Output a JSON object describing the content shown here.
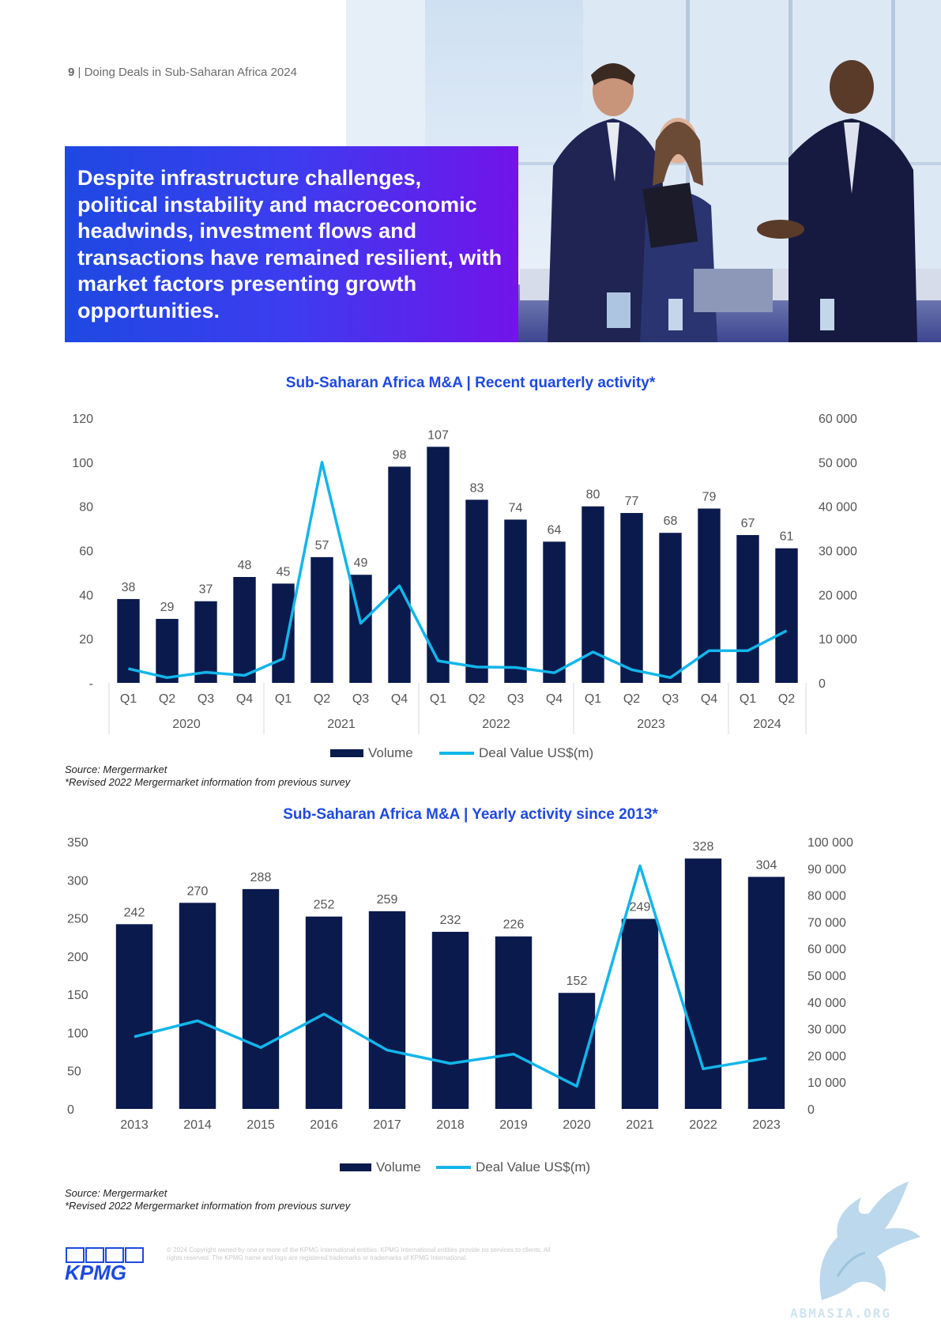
{
  "header": {
    "page_number": "9",
    "separator": "|",
    "title": "Doing Deals in Sub-Saharan Africa 2024"
  },
  "callout": {
    "text": "Despite infrastructure challenges, political instability and macroeconomic headwinds, investment flows and transactions have remained resilient, with market factors presenting growth opportunities."
  },
  "colors": {
    "bar": "#0b1a4d",
    "line": "#12b6ea",
    "title_blue": "#1e49e2",
    "gradient_start": "#1e49e2",
    "gradient_end": "#7213ea"
  },
  "chart_data": [
    {
      "type": "bar",
      "title": "Sub-Saharan Africa M&A | Recent quarterly activity*",
      "categories": [
        "Q1",
        "Q2",
        "Q3",
        "Q4",
        "Q1",
        "Q2",
        "Q3",
        "Q4",
        "Q1",
        "Q2",
        "Q3",
        "Q4",
        "Q1",
        "Q2",
        "Q3",
        "Q4",
        "Q1",
        "Q2"
      ],
      "years": [
        {
          "label": "2020",
          "span": 4
        },
        {
          "label": "2021",
          "span": 4
        },
        {
          "label": "2022",
          "span": 4
        },
        {
          "label": "2023",
          "span": 4
        },
        {
          "label": "2024",
          "span": 2
        }
      ],
      "series": [
        {
          "name": "Volume",
          "type": "bar",
          "axis": "left",
          "values": [
            38,
            29,
            37,
            48,
            45,
            57,
            49,
            98,
            107,
            83,
            74,
            64,
            80,
            77,
            68,
            79,
            67,
            61
          ]
        },
        {
          "name": "Deal Value US$(m)",
          "type": "line",
          "axis": "right",
          "values": [
            3200,
            1200,
            2400,
            1700,
            5500,
            50000,
            13500,
            22000,
            5000,
            3600,
            3500,
            2300,
            7000,
            3000,
            1200,
            7300,
            7300,
            11800
          ]
        }
      ],
      "ylim_left": [
        0,
        120
      ],
      "yticks_left": [
        "-",
        "20",
        "40",
        "60",
        "80",
        "100",
        "120"
      ],
      "ylim_right": [
        0,
        60000
      ],
      "yticks_right": [
        "0",
        "10 000",
        "20 000",
        "30 000",
        "40 000",
        "50 000",
        "60 000"
      ],
      "legend": "bottom",
      "source": "Source: Mergermarket",
      "footnote": "*Revised 2022 Mergermarket information from previous survey"
    },
    {
      "type": "bar",
      "title": "Sub-Saharan Africa M&A | Yearly activity since 2013*",
      "categories": [
        "2013",
        "2014",
        "2015",
        "2016",
        "2017",
        "2018",
        "2019",
        "2020",
        "2021",
        "2022",
        "2023"
      ],
      "series": [
        {
          "name": "Volume",
          "type": "bar",
          "axis": "left",
          "values": [
            242,
            270,
            288,
            252,
            259,
            232,
            226,
            152,
            249,
            328,
            304
          ]
        },
        {
          "name": "Deal Value US$(m)",
          "type": "line",
          "axis": "right",
          "values": [
            27000,
            33000,
            23000,
            35500,
            22000,
            17000,
            20500,
            8500,
            91000,
            15000,
            19000
          ]
        }
      ],
      "ylim_left": [
        0,
        350
      ],
      "yticks_left": [
        "0",
        "50",
        "100",
        "150",
        "200",
        "250",
        "300",
        "350"
      ],
      "ylim_right": [
        0,
        100000
      ],
      "yticks_right": [
        "0",
        "10 000",
        "20 000",
        "30 000",
        "40 000",
        "50 000",
        "60 000",
        "70 000",
        "80 000",
        "90 000",
        "100 000"
      ],
      "legend": "bottom",
      "source": "Source: Mergermarket",
      "footnote": "*Revised 2022 Mergermarket information from previous survey"
    }
  ],
  "footer": {
    "copyright": "© 2024 Copyright owned by one or more of the KPMG International entities. KPMG International entities provide no services to clients. All rights reserved. The KPMG name and logo are registered trademarks or trademarks of KPMG International.",
    "logo": "KPMG",
    "watermark": "ABMASIA.ORG"
  }
}
